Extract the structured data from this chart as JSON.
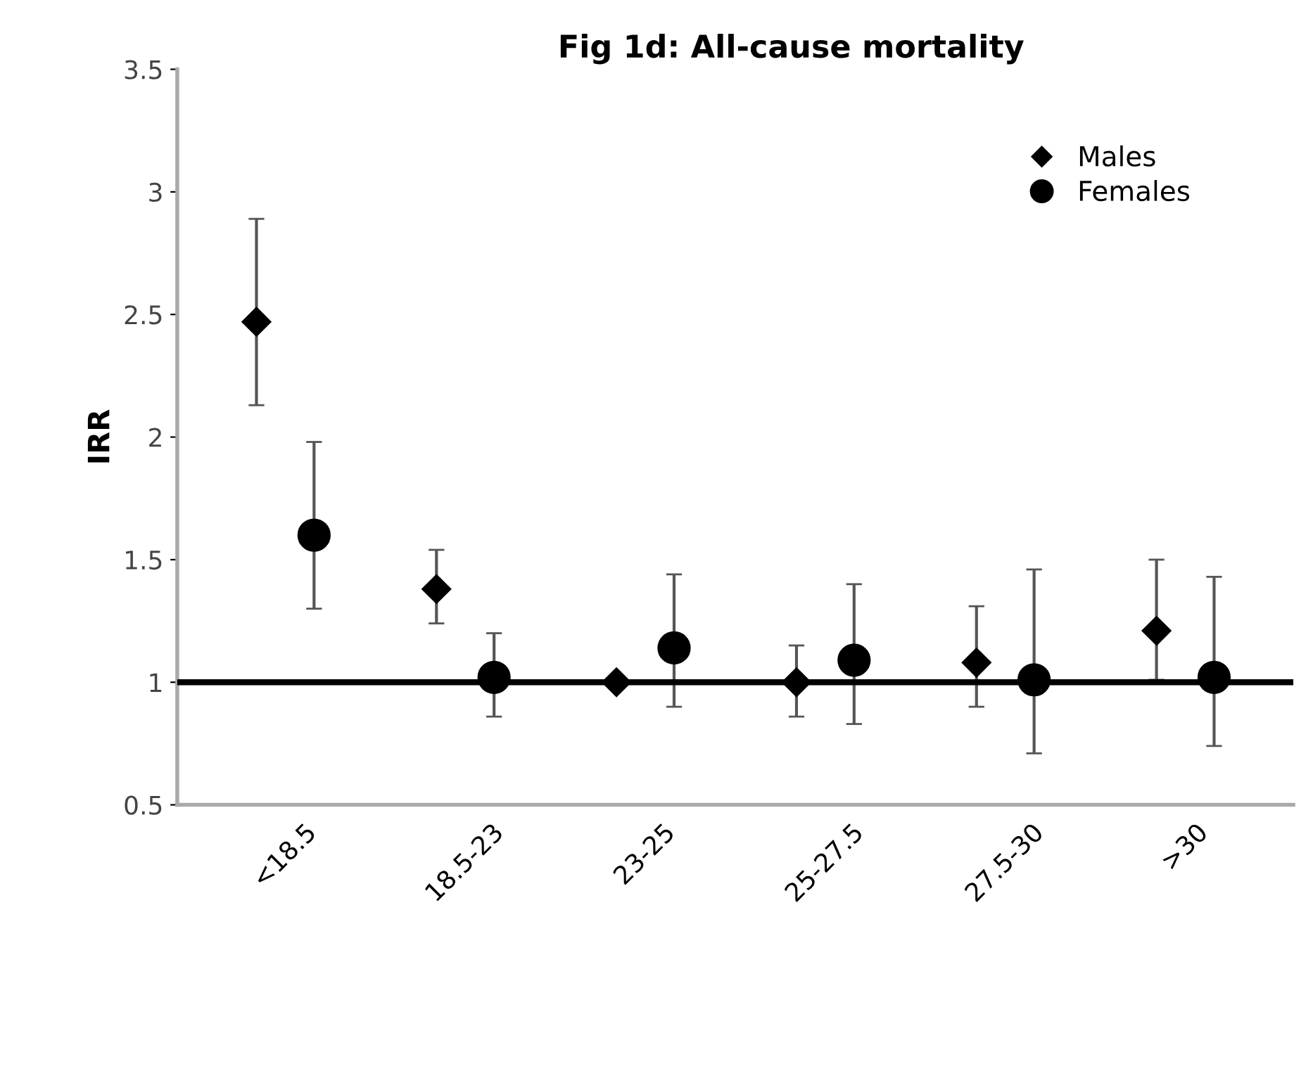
{
  "chart_data": {
    "type": "scatter",
    "title": "Fig 1d: All-cause mortality",
    "ylabel": "IRR",
    "categories": [
      "<18.5",
      "18.5-23",
      "23-25",
      "25-27.5",
      "27.5-30",
      ">30"
    ],
    "series": [
      {
        "name": "Males",
        "color": "#000000",
        "marker": "diamond",
        "values": [
          2.47,
          1.38,
          1.0,
          1.0,
          1.08,
          1.21
        ],
        "errors": [
          [
            2.13,
            2.89
          ],
          [
            1.24,
            1.54
          ],
          null,
          [
            0.86,
            1.15
          ],
          [
            0.9,
            1.31
          ],
          [
            1.01,
            1.5
          ]
        ]
      },
      {
        "name": "Females",
        "color": "#000000",
        "marker": "circle",
        "values": [
          1.6,
          1.02,
          1.14,
          1.09,
          1.01,
          1.02
        ],
        "errors": [
          [
            1.3,
            1.98
          ],
          [
            0.86,
            1.2
          ],
          [
            0.9,
            1.44
          ],
          [
            0.83,
            1.4
          ],
          [
            0.71,
            1.46
          ],
          [
            0.74,
            1.43
          ]
        ]
      }
    ],
    "ylim": [
      0.5,
      3.5
    ],
    "yticks": [
      0.5,
      1,
      1.5,
      2,
      2.5,
      3,
      3.5
    ],
    "ref_lines": [
      {
        "axis": "y",
        "value": 1,
        "color": "#000000",
        "line_style": "solid"
      }
    ],
    "grid": false,
    "legend": "top right"
  }
}
